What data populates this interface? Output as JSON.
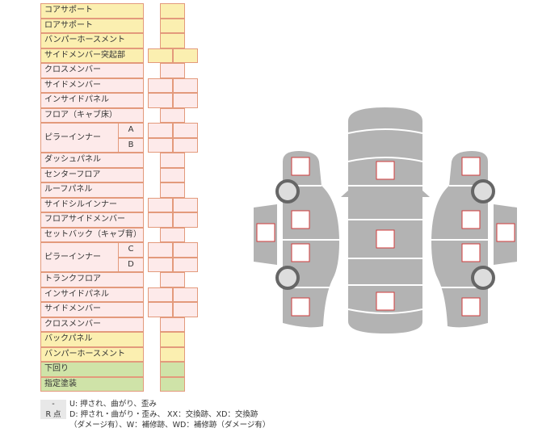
{
  "rows": [
    {
      "label": "コアサポート",
      "color": "y",
      "cells": 1
    },
    {
      "label": "ロアサポート",
      "color": "y",
      "cells": 1
    },
    {
      "label": "バンパーホースメント",
      "color": "y",
      "cells": 1
    },
    {
      "label": "サイドメンバー突起部",
      "color": "y",
      "cells": 2
    },
    {
      "label": "クロスメンバー",
      "color": "p",
      "cells": 1
    },
    {
      "label": "サイドメンバー",
      "color": "p",
      "cells": 2
    },
    {
      "label": "インサイドパネル",
      "color": "p",
      "cells": 2
    },
    {
      "label": "フロア（キャブ床）",
      "color": "p",
      "cells": 1
    },
    {
      "label": "ピラーインナー",
      "sub": "A",
      "color": "p",
      "cells": 2
    },
    {
      "label": "",
      "sub": "B",
      "color": "p",
      "cells": 2
    },
    {
      "label": "ダッシュパネル",
      "color": "p",
      "cells": 1
    },
    {
      "label": "センターフロア",
      "color": "p",
      "cells": 1
    },
    {
      "label": "ルーフパネル",
      "color": "p",
      "cells": 1
    },
    {
      "label": "サイドシルインナー",
      "color": "p",
      "cells": 2
    },
    {
      "label": "フロアサイドメンバー",
      "color": "p",
      "cells": 2
    },
    {
      "label": "セットバック（キャブ背）",
      "color": "p",
      "cells": 1
    },
    {
      "label": "ピラーインナー",
      "sub": "C",
      "color": "p",
      "cells": 2
    },
    {
      "label": "",
      "sub": "D",
      "color": "p",
      "cells": 2
    },
    {
      "label": "トランクフロア",
      "color": "p",
      "cells": 1
    },
    {
      "label": "インサイドパネル",
      "color": "p",
      "cells": 2
    },
    {
      "label": "サイドメンバー",
      "color": "p",
      "cells": 2
    },
    {
      "label": "クロスメンバー",
      "color": "p",
      "cells": 1
    },
    {
      "label": "バックパネル",
      "color": "y",
      "cells": 1
    },
    {
      "label": "バンパーホースメント",
      "color": "y",
      "cells": 1
    },
    {
      "label": "下回り",
      "color": "g",
      "cells": 1
    },
    {
      "label": "指定塗装",
      "color": "g",
      "cells": 1
    }
  ],
  "legend": [
    {
      "key": "-",
      "text": "U: 押され、曲がり、歪み"
    },
    {
      "key": "R 点",
      "text": "D: 押され・曲がり・歪み、 XX：交換跡、XD：交換跡"
    },
    {
      "key": "",
      "text": "（ダメージ有）、W：補修跡、WD：補修跡（ダメージ有）"
    }
  ],
  "colors": {
    "body": "#b3b3b3",
    "marker": "#d23b3b",
    "border": "#e39a7c"
  }
}
